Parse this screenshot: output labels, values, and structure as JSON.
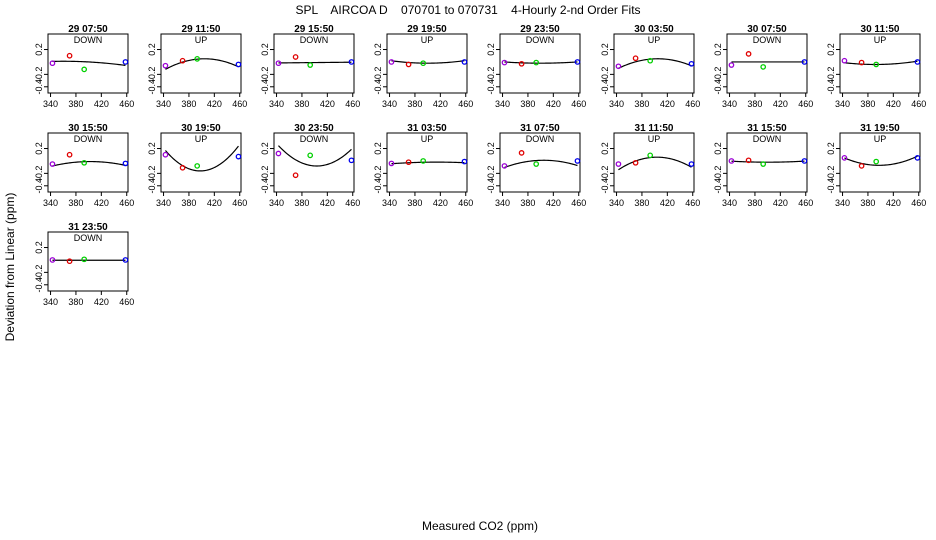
{
  "chart_data": {
    "type": "scatter",
    "title": "SPL    AIRCOA D    070701 to 070731    4-Hourly 2-nd Order Fits",
    "xlabel": "Measured CO2 (ppm)",
    "ylabel": "Deviation from Linear (ppm)",
    "xlim": [
      336,
      462
    ],
    "ylim": [
      -0.5,
      0.45
    ],
    "xticks": [
      "340",
      "380",
      "420",
      "460"
    ],
    "yticks": [
      "0.2",
      "-0.2",
      "-0.4"
    ],
    "ytick_values": [
      0.2,
      -0.2,
      -0.4
    ],
    "xtick_values": [
      340,
      380,
      420,
      460
    ],
    "standard_x": [
      343,
      370,
      393,
      458
    ],
    "point_colors": [
      "#9b00d6",
      "#e00000",
      "#00d000",
      "#0000ee"
    ],
    "fit_color": "#000000",
    "grid": false,
    "panels": [
      {
        "title": "29 07:50",
        "direction": "DOWN",
        "y": [
          -0.02,
          0.1,
          -0.12,
          0.0
        ],
        "fit": [
          0.0,
          -0.00055,
          -7e-06
        ]
      },
      {
        "title": "29 11:50",
        "direction": "UP",
        "y": [
          -0.06,
          0.02,
          0.05,
          -0.04
        ],
        "fit": [
          0.05,
          0.0004,
          -4.5e-05
        ]
      },
      {
        "title": "29 15:50",
        "direction": "DOWN",
        "y": [
          -0.02,
          0.08,
          -0.05,
          0.0
        ],
        "fit": [
          -0.01,
          0.0001,
          0.0
        ]
      },
      {
        "title": "29 19:50",
        "direction": "UP",
        "y": [
          0.0,
          -0.04,
          -0.02,
          0.0
        ],
        "fit": [
          -0.02,
          0.0,
          1.2e-05
        ]
      },
      {
        "title": "29 23:50",
        "direction": "DOWN",
        "y": [
          -0.01,
          -0.03,
          -0.01,
          0.0
        ],
        "fit": [
          -0.02,
          0.0,
          6e-06
        ]
      },
      {
        "title": "30 03:50",
        "direction": "UP",
        "y": [
          -0.07,
          0.06,
          0.02,
          -0.03
        ],
        "fit": [
          0.05,
          0.0004,
          -4e-05
        ]
      },
      {
        "title": "30 07:50",
        "direction": "DOWN",
        "y": [
          -0.05,
          0.13,
          -0.08,
          0.0
        ],
        "fit": [
          0.0,
          0.0,
          0.0
        ]
      },
      {
        "title": "30 11:50",
        "direction": "UP",
        "y": [
          0.02,
          -0.01,
          -0.04,
          0.0
        ],
        "fit": [
          -0.04,
          0.0002,
          1.2e-05
        ]
      },
      {
        "title": "30 15:50",
        "direction": "DOWN",
        "y": [
          -0.05,
          0.1,
          -0.03,
          -0.04
        ],
        "fit": [
          -0.01,
          0.0001,
          -2e-05
        ]
      },
      {
        "title": "30 19:50",
        "direction": "UP",
        "y": [
          0.1,
          -0.11,
          -0.08,
          0.07
        ],
        "fit": [
          -0.16,
          0.0005,
          0.00011
        ]
      },
      {
        "title": "30 23:50",
        "direction": "DOWN",
        "y": [
          0.12,
          -0.23,
          0.09,
          0.01
        ],
        "fit": [
          -0.08,
          -0.0006,
          9e-05
        ]
      },
      {
        "title": "31 03:50",
        "direction": "UP",
        "y": [
          -0.04,
          -0.02,
          0.0,
          -0.01
        ],
        "fit": [
          -0.02,
          0.00015,
          -5e-06
        ]
      },
      {
        "title": "31 07:50",
        "direction": "DOWN",
        "y": [
          -0.08,
          0.13,
          -0.05,
          0.0
        ],
        "fit": [
          0.01,
          0.0003,
          -3e-05
        ]
      },
      {
        "title": "31 11:50",
        "direction": "UP",
        "y": [
          -0.05,
          -0.03,
          0.09,
          -0.05
        ],
        "fit": [
          0.06,
          0.0004,
          -5.5e-05
        ]
      },
      {
        "title": "31 15:50",
        "direction": "DOWN",
        "y": [
          0.0,
          0.01,
          -0.05,
          0.0
        ],
        "fit": [
          -0.02,
          0.0,
          5e-06
        ]
      },
      {
        "title": "31 19:50",
        "direction": "UP",
        "y": [
          0.05,
          -0.08,
          -0.01,
          0.05
        ],
        "fit": [
          -0.07,
          0.0002,
          4e-05
        ]
      },
      {
        "title": "31 23:50",
        "direction": "DOWN",
        "y": [
          0.0,
          -0.02,
          0.01,
          0.0
        ],
        "fit": [
          -0.005,
          0.0,
          0.0
        ]
      }
    ]
  }
}
